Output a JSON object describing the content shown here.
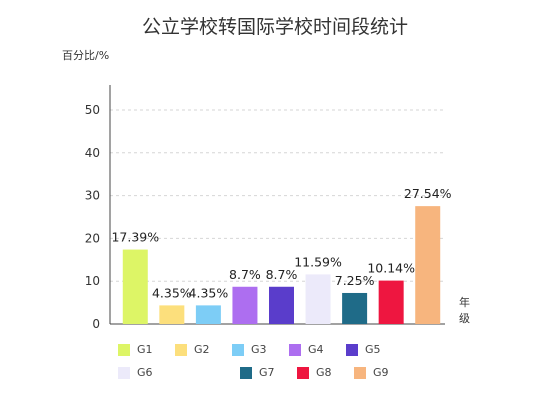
{
  "chart_data": {
    "type": "bar",
    "title": "公立学校转国际学校时间段统计",
    "ylabel": "百分比/%",
    "xlabel": "年级",
    "ylim": [
      0,
      50
    ],
    "yticks": [
      "0",
      "10",
      "20",
      "30",
      "40",
      "50"
    ],
    "grid": true,
    "legend": "bottom",
    "categories": [
      "G1",
      "G2",
      "G3",
      "G4",
      "G5",
      "G6",
      "G7",
      "G8",
      "G9"
    ],
    "values": [
      17.39,
      4.35,
      4.35,
      8.7,
      8.7,
      11.59,
      7.25,
      10.14,
      27.54
    ],
    "data_labels": [
      "17.39%",
      "4.35%",
      "4.35%",
      "8.7%",
      "8.7%",
      "11.59%",
      "7.25%",
      "10.14%",
      "27.54%"
    ],
    "colors": [
      "#ddf566",
      "#fcdf7c",
      "#7dcdf6",
      "#ad6ef0",
      "#5a3dcb",
      "#eceafa",
      "#1f6b88",
      "#ee1640",
      "#f7b57e"
    ]
  }
}
